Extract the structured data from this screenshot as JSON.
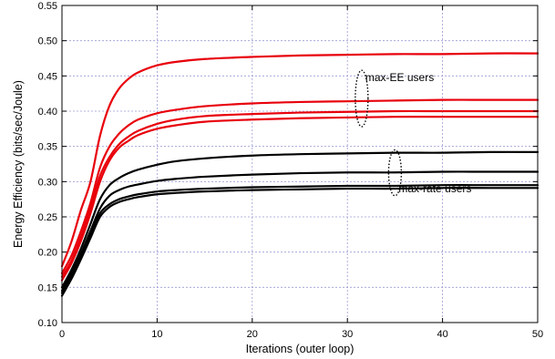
{
  "chart_data": {
    "type": "line",
    "title": "",
    "xlabel": "Iterations (outer loop)",
    "ylabel": "Energy Efficiency (bits/sec/Joule)",
    "xlim": [
      0,
      50
    ],
    "ylim": [
      0.1,
      0.55
    ],
    "xticks": [
      "0",
      "10",
      "20",
      "30",
      "40",
      "50"
    ],
    "yticks": [
      "0.10",
      "0.15",
      "0.20",
      "0.25",
      "0.30",
      "0.35",
      "0.40",
      "0.45",
      "0.50",
      "0.55"
    ],
    "grid": true,
    "colors": {
      "max_ee": "#e8000b",
      "max_rate": "#000000",
      "grid": "#9b9bd6"
    },
    "x": [
      0,
      1,
      2,
      3,
      4,
      5,
      6,
      7,
      8,
      10,
      12,
      15,
      20,
      25,
      30,
      35,
      40,
      45,
      50
    ],
    "series": [
      {
        "group": "max_ee",
        "values": [
          0.18,
          0.215,
          0.26,
          0.3,
          0.365,
          0.408,
          0.432,
          0.446,
          0.455,
          0.465,
          0.47,
          0.474,
          0.477,
          0.479,
          0.48,
          0.481,
          0.481,
          0.482,
          0.482
        ]
      },
      {
        "group": "max_ee",
        "values": [
          0.17,
          0.195,
          0.23,
          0.27,
          0.32,
          0.35,
          0.368,
          0.38,
          0.388,
          0.397,
          0.402,
          0.407,
          0.411,
          0.413,
          0.414,
          0.415,
          0.416,
          0.416,
          0.416
        ]
      },
      {
        "group": "max_ee",
        "values": [
          0.165,
          0.188,
          0.222,
          0.262,
          0.308,
          0.335,
          0.353,
          0.364,
          0.372,
          0.382,
          0.388,
          0.393,
          0.396,
          0.398,
          0.399,
          0.4,
          0.4,
          0.4,
          0.4
        ]
      },
      {
        "group": "max_ee",
        "values": [
          0.16,
          0.184,
          0.216,
          0.255,
          0.3,
          0.33,
          0.348,
          0.358,
          0.366,
          0.375,
          0.38,
          0.385,
          0.388,
          0.39,
          0.391,
          0.392,
          0.392,
          0.392,
          0.392
        ]
      },
      {
        "group": "max_rate",
        "values": [
          0.15,
          0.175,
          0.205,
          0.24,
          0.275,
          0.295,
          0.305,
          0.312,
          0.317,
          0.324,
          0.329,
          0.333,
          0.337,
          0.339,
          0.34,
          0.341,
          0.341,
          0.342,
          0.342
        ]
      },
      {
        "group": "max_rate",
        "values": [
          0.145,
          0.17,
          0.198,
          0.23,
          0.262,
          0.28,
          0.288,
          0.293,
          0.296,
          0.301,
          0.304,
          0.307,
          0.31,
          0.312,
          0.313,
          0.313,
          0.314,
          0.314,
          0.314
        ]
      },
      {
        "group": "max_rate",
        "values": [
          0.142,
          0.166,
          0.194,
          0.225,
          0.255,
          0.268,
          0.275,
          0.279,
          0.282,
          0.286,
          0.288,
          0.29,
          0.292,
          0.293,
          0.294,
          0.294,
          0.295,
          0.295,
          0.295
        ]
      },
      {
        "group": "max_rate",
        "values": [
          0.138,
          0.162,
          0.19,
          0.22,
          0.25,
          0.264,
          0.271,
          0.275,
          0.278,
          0.282,
          0.284,
          0.286,
          0.288,
          0.289,
          0.29,
          0.29,
          0.291,
          0.291,
          0.291
        ]
      }
    ],
    "annotations": [
      {
        "text": "max-EE users",
        "group": "max_ee",
        "ellipse_x": 31.5,
        "ellipse_y": [
          0.378,
          0.458
        ]
      },
      {
        "text": "max-rate users",
        "group": "max_rate",
        "ellipse_x": 35.0,
        "ellipse_y": [
          0.28,
          0.345
        ]
      }
    ]
  }
}
